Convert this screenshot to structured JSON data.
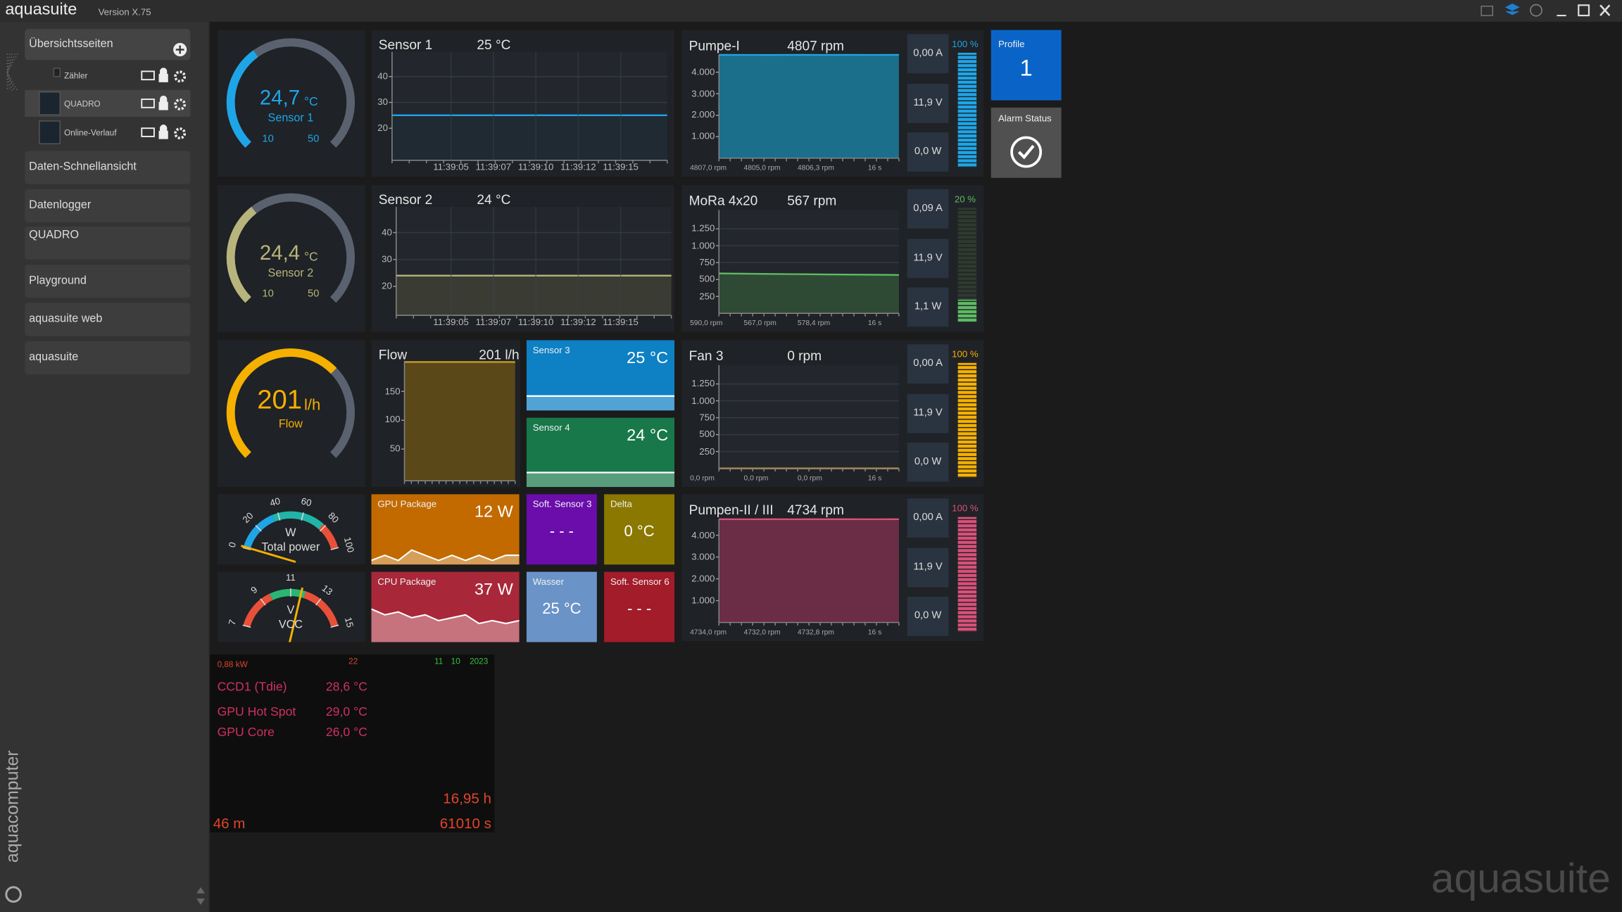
{
  "window": {
    "app_name": "aquasuite",
    "version": "Version X.75"
  },
  "sidebar": {
    "overview_title": "Übersichtsseiten",
    "pages": [
      "Zähler",
      "QUADRO",
      "Online-Verlauf"
    ],
    "buttons": [
      "Daten-Schnellansicht",
      "Datenlogger",
      "QUADRO",
      "Playground",
      "aquasuite web",
      "aquasuite"
    ],
    "brand": "aquacomputer"
  },
  "gauges": [
    {
      "value": 24.7,
      "value_label": "24,7",
      "unit": "°C",
      "label": "Sensor 1",
      "range": [
        10,
        50
      ],
      "show_range": true,
      "color": "#1ea5e8"
    },
    {
      "value": 24.4,
      "value_label": "24,4",
      "unit": "°C",
      "label": "Sensor 2",
      "range": [
        10,
        50
      ],
      "show_range": true,
      "color": "#b8b57c"
    },
    {
      "value": 201,
      "value_label": "201",
      "unit": "l/h",
      "label": "Flow",
      "range": [
        0,
        300
      ],
      "show_range": false,
      "color": "#f5b000"
    }
  ],
  "sensor_charts": [
    {
      "title": "Sensor 1",
      "reading": "25 °C",
      "ylim": [
        7.6,
        49.6
      ],
      "yticks": [
        20,
        30,
        40
      ],
      "xticks": [
        "11:39:05",
        "11:39:07",
        "11:39:10",
        "11:39:12",
        "11:39:15"
      ],
      "values": [
        25,
        25,
        25,
        25,
        25,
        25,
        25,
        25
      ],
      "color": "#1ea5e8",
      "fill": "#1f2a33"
    },
    {
      "title": "Sensor 2",
      "reading": "24 °C",
      "ylim": [
        9.2,
        49.6
      ],
      "yticks": [
        20,
        30,
        40
      ],
      "xticks": [
        "11:39:05",
        "11:39:07",
        "11:39:10",
        "11:39:12",
        "11:39:15"
      ],
      "values": [
        24,
        24,
        24,
        24,
        24,
        24,
        24,
        24
      ],
      "color": "#b8b57c",
      "fill": "#3a3c34"
    }
  ],
  "flow_chart": {
    "title": "Flow",
    "reading": "201 l/h",
    "ylim": [
      -5,
      203
    ],
    "yticks": [
      50,
      100,
      150
    ],
    "values": [
      201,
      201,
      201,
      201,
      201,
      201
    ],
    "color": "#c89a2a",
    "fill": "#5a4818"
  },
  "pumps": [
    {
      "title": "Pumpe-I",
      "reading": "4807 rpm",
      "ylim": [
        0,
        4810
      ],
      "yticks": [
        {
          "value": 1000,
          "label": "1.000"
        },
        {
          "value": 2000,
          "label": "2.000"
        },
        {
          "value": 3000,
          "label": "3.000"
        },
        {
          "value": 4000,
          "label": "4.000"
        }
      ],
      "values": [
        4807,
        4806,
        4805,
        4807,
        4806,
        4807,
        4806,
        4807
      ],
      "stats": [
        "4807,0 rpm",
        "4805,0 rpm",
        "4806,3 rpm",
        "16 s"
      ],
      "readouts": [
        "0,00 A",
        "11,9 V",
        "0,0 W"
      ],
      "level": 100,
      "level_label": "100 %",
      "color": "#1ea5e8",
      "fill": "#1b6f8a"
    },
    {
      "title": "MoRa 4x20",
      "reading": "567 rpm",
      "ylim": [
        0,
        1530
      ],
      "yticks": [
        {
          "value": 250,
          "label": "250"
        },
        {
          "value": 500,
          "label": "500"
        },
        {
          "value": 750,
          "label": "750"
        },
        {
          "value": 1000,
          "label": "1.000"
        },
        {
          "value": 1250,
          "label": "1.250"
        }
      ],
      "values": [
        590,
        586,
        582,
        579,
        576,
        573,
        570,
        567
      ],
      "stats": [
        "590,0 rpm",
        "567,0 rpm",
        "578,4 rpm",
        "16 s"
      ],
      "readouts": [
        "0,09 A",
        "11,9 V",
        "1,1 W"
      ],
      "level": 20,
      "level_label": "20 %",
      "color": "#5dbb63",
      "fill": "#2e4a34"
    },
    {
      "title": "Fan 3",
      "reading": "0 rpm",
      "ylim": [
        0,
        1530
      ],
      "yticks": [
        {
          "value": 250,
          "label": "250"
        },
        {
          "value": 500,
          "label": "500"
        },
        {
          "value": 750,
          "label": "750"
        },
        {
          "value": 1000,
          "label": "1.000"
        },
        {
          "value": 1250,
          "label": "1.250"
        }
      ],
      "values": [
        0,
        0,
        0,
        0,
        0,
        0,
        0,
        0
      ],
      "stats": [
        "0,0 rpm",
        "0,0 rpm",
        "0,0 rpm",
        "16 s"
      ],
      "readouts": [
        "0,00 A",
        "11,9 V",
        "0,0 W"
      ],
      "level": 100,
      "level_label": "100 %",
      "color": "#f5b000",
      "fill": "#4a3c10"
    },
    {
      "title": "Pumpen-II / III",
      "reading": "4734 rpm",
      "ylim": [
        0,
        4740
      ],
      "yticks": [
        {
          "value": 1000,
          "label": "1.000"
        },
        {
          "value": 2000,
          "label": "2.000"
        },
        {
          "value": 3000,
          "label": "3.000"
        },
        {
          "value": 4000,
          "label": "4.000"
        }
      ],
      "values": [
        4734,
        4732,
        4733,
        4732,
        4734,
        4733,
        4732,
        4734
      ],
      "stats": [
        "4734,0 rpm",
        "4732,0 rpm",
        "4732,8 rpm",
        "16 s"
      ],
      "readouts": [
        "0,00 A",
        "11,9 V",
        "0,0 W"
      ],
      "level": 100,
      "level_label": "100 %",
      "color": "#d9507a",
      "fill": "#6a2d45"
    }
  ],
  "tiles": [
    {
      "title": "Sensor 3",
      "reading": "25 °C",
      "style": "wide",
      "color": "#0e80c4"
    },
    {
      "title": "Sensor 4",
      "reading": "24 °C",
      "style": "wide",
      "color": "#18784a"
    },
    {
      "title": "GPU Package",
      "reading": "12 W",
      "style": "wide",
      "color": "#c26a00",
      "history": [
        3,
        4,
        3,
        5,
        4,
        3,
        4,
        3,
        4,
        3,
        4,
        4
      ]
    },
    {
      "title": "CPU Package",
      "reading": "37 W",
      "style": "wide",
      "color": "#a8283a",
      "history": [
        38,
        36,
        37,
        35,
        36,
        34,
        35,
        36,
        33,
        34,
        33,
        34
      ]
    },
    {
      "title": "Soft. Sensor 3",
      "reading": "- - -",
      "style": "square",
      "color": "#6a0dab"
    },
    {
      "title": "Delta",
      "reading": "0 °C",
      "style": "square",
      "color": "#8a7800"
    },
    {
      "title": "Wasser",
      "reading": "25 °C",
      "style": "square",
      "color": "#6a93c8"
    },
    {
      "title": "Soft. Sensor 6",
      "reading": "- - -",
      "style": "square",
      "color": "#a21c2a"
    }
  ],
  "dials": [
    {
      "unit": "W",
      "label": "Total power",
      "ticks": [
        0,
        20,
        40,
        60,
        80,
        100
      ],
      "needle": 1
    },
    {
      "unit": "V",
      "label": "VCC",
      "ticks": [
        7,
        9,
        11,
        13,
        15
      ],
      "needle": 11.7
    }
  ],
  "profile": {
    "title": "Profile",
    "number": 1
  },
  "alarm": {
    "title": "Alarm Status"
  },
  "log_panel": {
    "power": "0,88 kW",
    "counter": "22",
    "date": [
      "11",
      "10",
      "2023"
    ],
    "rows": [
      {
        "name": "CCD1 (Tdie)",
        "value": "28,6 °C"
      },
      {
        "name": "GPU Hot Spot",
        "value": "29,0 °C"
      },
      {
        "name": "GPU Core",
        "value": "26,0 °C"
      }
    ],
    "hours": "16,95 h",
    "minutes": "46 m",
    "seconds": "61010 s"
  },
  "watermark": "aquasuite"
}
